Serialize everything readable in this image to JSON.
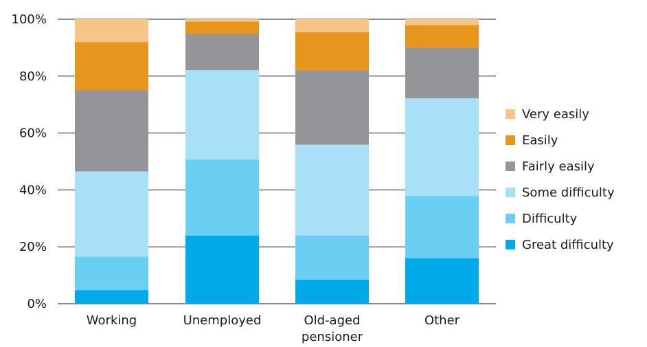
{
  "chart_data": {
    "type": "bar",
    "stacked": true,
    "categories": [
      [
        "Working"
      ],
      [
        "Unemployed"
      ],
      [
        "Old-aged",
        "pensioner"
      ],
      [
        "Other"
      ]
    ],
    "ylim": [
      0,
      100
    ],
    "yticks": [
      "0%",
      "20%",
      "40%",
      "60%",
      "80%",
      "100%"
    ],
    "ytick_values": [
      0,
      20,
      40,
      60,
      80,
      100
    ],
    "grid": true,
    "legend_position": "right",
    "series": [
      {
        "name": "Great difficulty",
        "color": "#00a9e8",
        "values": [
          4.8,
          24.0,
          8.5,
          16.0
        ]
      },
      {
        "name": "Difficulty",
        "color": "#6bcff4",
        "values": [
          11.8,
          26.7,
          15.5,
          21.9
        ]
      },
      {
        "name": "Some difficulty",
        "color": "#a8e0f8",
        "values": [
          29.9,
          31.4,
          31.9,
          34.3
        ]
      },
      {
        "name": "Fairly easily",
        "color": "#939598",
        "values": [
          28.5,
          12.7,
          26.1,
          17.8
        ]
      },
      {
        "name": "Easily",
        "color": "#e8951e",
        "values": [
          17.0,
          4.4,
          13.5,
          8.0
        ]
      },
      {
        "name": "Very easily",
        "color": "#f5c688",
        "values": [
          8.0,
          0.8,
          4.5,
          2.0
        ]
      }
    ],
    "legend_order": [
      "Very easily",
      "Easily",
      "Fairly easily",
      "Some difficulty",
      "Difficulty",
      "Great difficulty"
    ]
  }
}
